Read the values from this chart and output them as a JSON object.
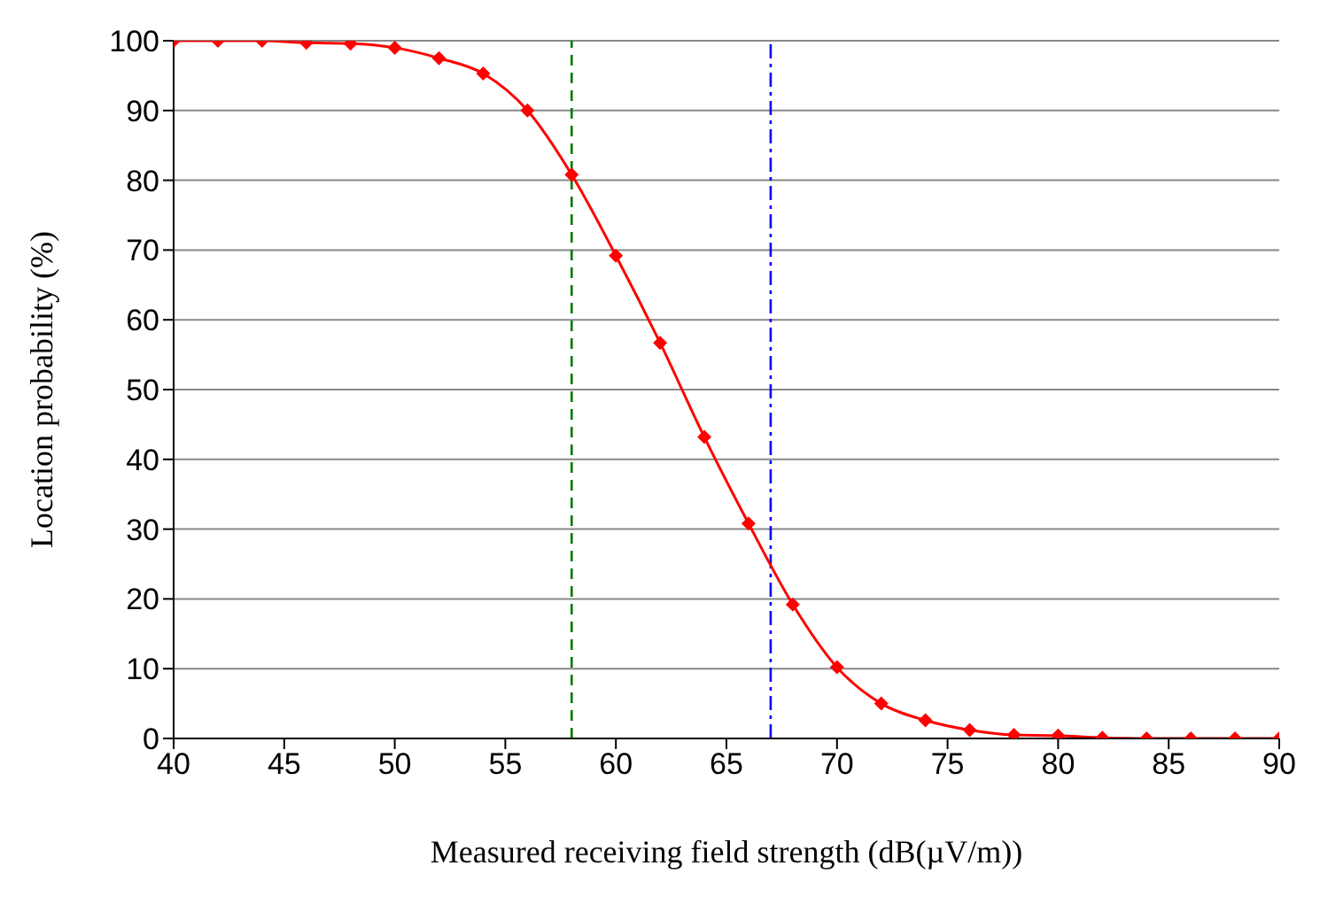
{
  "chart_data": {
    "type": "line",
    "xlabel": "Measured receiving field strength (dB(µV/m))",
    "ylabel": "Location probability (%)",
    "x": [
      40,
      42,
      44,
      46,
      48,
      50,
      52,
      54,
      56,
      58,
      60,
      62,
      64,
      66,
      68,
      70,
      72,
      74,
      76,
      78,
      80,
      82,
      84,
      86,
      88,
      90
    ],
    "series": [
      {
        "color": "#ff0000",
        "values": [
          100,
          100,
          100,
          99.7,
          99.6,
          99,
          97.5,
          95.3,
          90,
          80.8,
          69.2,
          56.7,
          43.2,
          30.8,
          19.2,
          10.2,
          5,
          2.6,
          1.2,
          0.5,
          0.4,
          0.1,
          0,
          0,
          0,
          0
        ]
      }
    ],
    "xlim": [
      40,
      90
    ],
    "xticks": [
      40,
      45,
      50,
      55,
      60,
      65,
      70,
      75,
      80,
      85,
      90
    ],
    "ylim": [
      0,
      100
    ],
    "yticks": [
      0,
      10,
      20,
      30,
      40,
      50,
      60,
      70,
      80,
      90,
      100
    ],
    "grid": "y",
    "marker": "diamond",
    "line_style": "solid",
    "ref_lines": [
      {
        "axis": "x",
        "value": 58,
        "color": "#007700",
        "line_style": "dashed"
      },
      {
        "axis": "x",
        "value": 67,
        "color": "#0000ff",
        "line_style": "dashdot"
      }
    ]
  }
}
